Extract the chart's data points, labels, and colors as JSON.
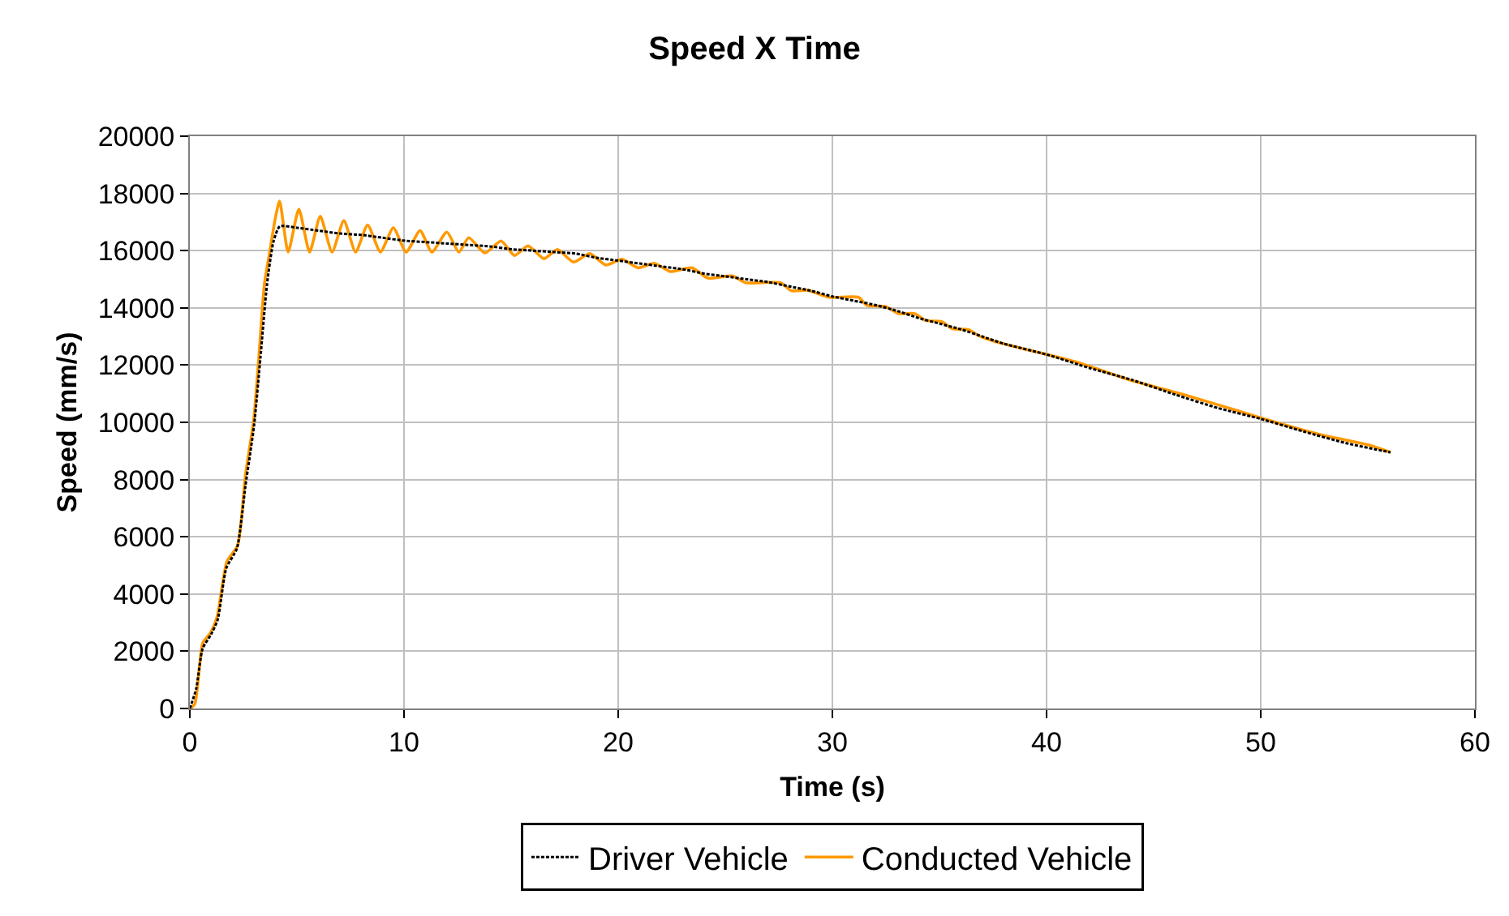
{
  "chart_data": {
    "type": "line",
    "title": "Speed X Time",
    "xlabel": "Time (s)",
    "ylabel": "Speed (mm/s)",
    "xlim": [
      0,
      60
    ],
    "xticks": [
      0,
      10,
      20,
      30,
      40,
      50,
      60
    ],
    "ylim": [
      0,
      20000
    ],
    "yticks": [
      0,
      2000,
      4000,
      6000,
      8000,
      10000,
      12000,
      14000,
      16000,
      18000,
      20000
    ],
    "grid": true,
    "legend": "bottom",
    "marker": "none",
    "series": [
      {
        "name": "Driver Vehicle",
        "color": "#000000",
        "line_style": "dotted",
        "x": [
          0,
          0.3,
          0.6,
          1.0,
          1.3,
          1.7,
          2.2,
          2.6,
          3.0,
          3.3,
          3.6,
          3.9,
          4.2,
          5,
          6,
          7,
          8,
          9,
          10,
          11,
          12,
          13,
          14,
          15,
          16,
          17,
          18,
          19,
          20,
          21,
          22,
          23,
          24,
          25,
          26,
          27,
          28,
          29,
          30,
          31,
          32,
          33,
          34,
          35,
          36,
          37,
          38,
          40,
          42,
          44,
          46,
          48,
          50,
          52,
          54,
          56.06
        ],
        "values": [
          0,
          700,
          2100,
          2600,
          3100,
          4900,
          5600,
          7800,
          9900,
          12300,
          14800,
          16300,
          16850,
          16800,
          16700,
          16600,
          16550,
          16450,
          16350,
          16300,
          16250,
          16200,
          16150,
          16050,
          16000,
          15950,
          15900,
          15750,
          15650,
          15550,
          15450,
          15350,
          15200,
          15100,
          15000,
          14900,
          14750,
          14600,
          14400,
          14250,
          14100,
          13900,
          13650,
          13450,
          13250,
          13000,
          12750,
          12370,
          11900,
          11480,
          10970,
          10500,
          10120,
          9680,
          9270,
          8950
        ]
      },
      {
        "name": "Conducted Vehicle",
        "color": "#ff9900",
        "line_style": "solid",
        "x": [
          0,
          0.23,
          0.6,
          0.98,
          1.28,
          1.73,
          2.23,
          2.6,
          2.98,
          3.23,
          3.48,
          3.73,
          3.98,
          4.19,
          4.59,
          5.09,
          5.59,
          6.09,
          6.64,
          7.19,
          7.74,
          8.3,
          8.9,
          9.5,
          10.1,
          10.75,
          11.3,
          12.0,
          12.56,
          13.02,
          13.78,
          14.53,
          15.16,
          15.79,
          16.54,
          17.16,
          17.92,
          18.67,
          19.42,
          20.18,
          20.93,
          21.68,
          22.43,
          23.44,
          24.19,
          25.32,
          25.95,
          27.58,
          28.08,
          28.83,
          29.84,
          31.22,
          31.6,
          32.47,
          33.1,
          33.85,
          34.35,
          35.1,
          35.6,
          36.36,
          36.87,
          37.62,
          38.87,
          40.13,
          41.38,
          43.89,
          46.4,
          48.9,
          50.16,
          52.68,
          55.18,
          56.06
        ],
        "values": [
          0,
          150,
          2280,
          2660,
          3230,
          5130,
          5700,
          8170,
          10070,
          12350,
          14820,
          15950,
          17090,
          17730,
          15950,
          17450,
          15950,
          17200,
          15950,
          17050,
          15950,
          16900,
          15950,
          16800,
          15950,
          16700,
          15950,
          16650,
          15950,
          16450,
          15920,
          16340,
          15830,
          16170,
          15720,
          16040,
          15600,
          15900,
          15500,
          15700,
          15400,
          15560,
          15270,
          15400,
          15040,
          15120,
          14880,
          14880,
          14600,
          14620,
          14370,
          14370,
          14090,
          14050,
          13800,
          13800,
          13560,
          13520,
          13270,
          13240,
          13010,
          12820,
          12580,
          12350,
          12110,
          11480,
          10970,
          10410,
          10120,
          9590,
          9180,
          8950
        ]
      }
    ]
  }
}
